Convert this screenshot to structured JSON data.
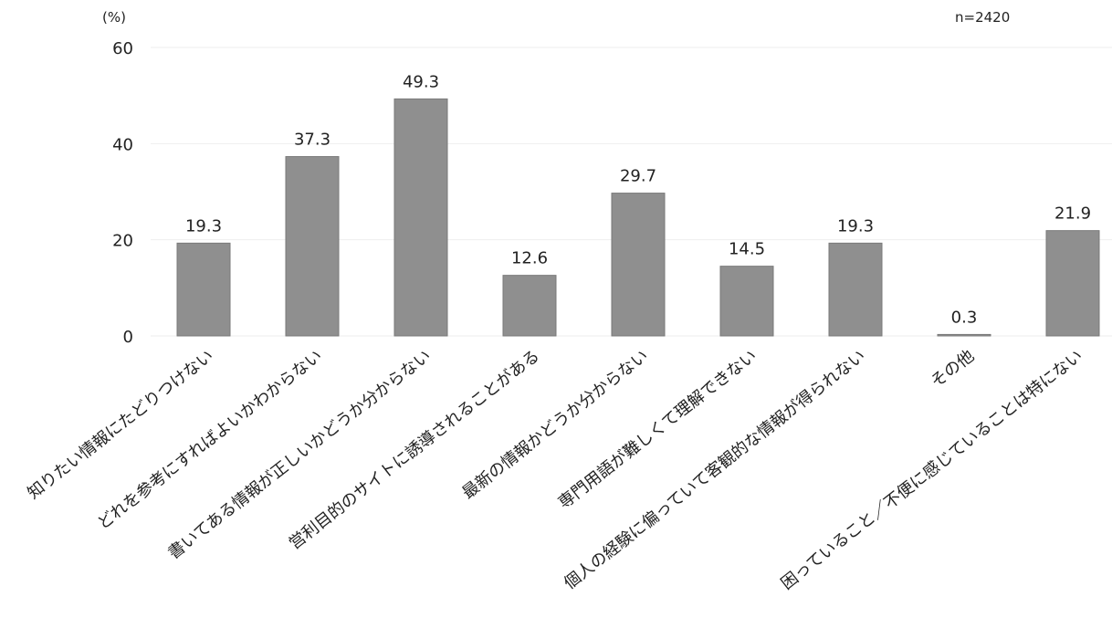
{
  "chart_data": {
    "type": "bar",
    "unit_label": "(%)",
    "n_label": "n=2420",
    "categories": [
      "知りたい情報にたどりつけない",
      "どれを参考にすればよいかわからない",
      "書いてある情報が正しいかどうか分からない",
      "営利目的のサイトに誘導されることがある",
      "最新の情報かどうか分からない",
      "専門用語が難しくて理解できない",
      "個人の経験に偏っていて客観的な情報が得られない",
      "その他",
      "困っていること／不便に感じていることは特にない"
    ],
    "values": [
      19.3,
      37.3,
      49.3,
      12.6,
      29.7,
      14.5,
      19.3,
      0.3,
      21.9
    ],
    "value_labels": [
      "19.3",
      "37.3",
      "49.3",
      "12.6",
      "29.7",
      "14.5",
      "19.3",
      "0.3",
      "21.9"
    ],
    "ylim": [
      0,
      60
    ],
    "yticks": [
      0,
      20,
      40,
      60
    ],
    "ytick_labels": [
      "0",
      "20",
      "40",
      "60"
    ],
    "grid": true,
    "colors": {
      "bar": "#8f8f8f",
      "grid": "#eeeeee",
      "text": "#222222"
    }
  }
}
